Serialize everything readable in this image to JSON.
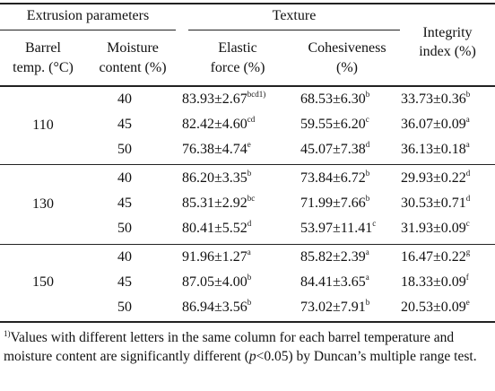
{
  "header": {
    "extrusion_parameters": "Extrusion parameters",
    "texture": "Texture",
    "integrity_line1": "Integrity",
    "integrity_line2": "index (%)",
    "barrel_line1": "Barrel",
    "barrel_line2": "temp. (°C)",
    "moisture_line1": "Moisture",
    "moisture_line2": "content (%)",
    "elastic_line1": "Elastic",
    "elastic_line2": "force (%)",
    "cohesiveness_line1": "Cohesiveness",
    "cohesiveness_line2": "(%)"
  },
  "groups": [
    {
      "temp": "110",
      "rows": [
        {
          "moisture": "40",
          "elastic": "83.93±2.67",
          "elastic_sup": "bcd1)",
          "cohesive": "68.53±6.30",
          "cohesive_sup": "b",
          "integrity": "33.73±0.36",
          "integrity_sup": "b"
        },
        {
          "moisture": "45",
          "elastic": "82.42±4.60",
          "elastic_sup": "cd",
          "cohesive": "59.55±6.20",
          "cohesive_sup": "c",
          "integrity": "36.07±0.09",
          "integrity_sup": "a"
        },
        {
          "moisture": "50",
          "elastic": "76.38±4.74",
          "elastic_sup": "e",
          "cohesive": "45.07±7.38",
          "cohesive_sup": "d",
          "integrity": "36.13±0.18",
          "integrity_sup": "a"
        }
      ]
    },
    {
      "temp": "130",
      "rows": [
        {
          "moisture": "40",
          "elastic": "86.20±3.35",
          "elastic_sup": "b",
          "cohesive": "73.84±6.72",
          "cohesive_sup": "b",
          "integrity": "29.93±0.22",
          "integrity_sup": "d"
        },
        {
          "moisture": "45",
          "elastic": "85.31±2.92",
          "elastic_sup": "bc",
          "cohesive": "71.99±7.66",
          "cohesive_sup": "b",
          "integrity": "30.53±0.71",
          "integrity_sup": "d"
        },
        {
          "moisture": "50",
          "elastic": "80.41±5.52",
          "elastic_sup": "d",
          "cohesive": "53.97±11.41",
          "cohesive_sup": "c",
          "integrity": "31.93±0.09",
          "integrity_sup": "c"
        }
      ]
    },
    {
      "temp": "150",
      "rows": [
        {
          "moisture": "40",
          "elastic": "91.96±1.27",
          "elastic_sup": "a",
          "cohesive": "85.82±2.39",
          "cohesive_sup": "a",
          "integrity": "16.47±0.22",
          "integrity_sup": "g"
        },
        {
          "moisture": "45",
          "elastic": "87.05±4.00",
          "elastic_sup": "b",
          "cohesive": "84.41±3.65",
          "cohesive_sup": "a",
          "integrity": "18.33±0.09",
          "integrity_sup": "f"
        },
        {
          "moisture": "50",
          "elastic": "86.94±3.56",
          "elastic_sup": "b",
          "cohesive": "73.02±7.91",
          "cohesive_sup": "b",
          "integrity": "20.53±0.09",
          "integrity_sup": "e"
        }
      ]
    }
  ],
  "footnote": {
    "marker": "1)",
    "text_a": "Values with different letters in the same column for each barrel temperature and moisture content are significantly different (",
    "p": "p",
    "text_b": "<0.05) by Duncan’s multiple range test."
  }
}
